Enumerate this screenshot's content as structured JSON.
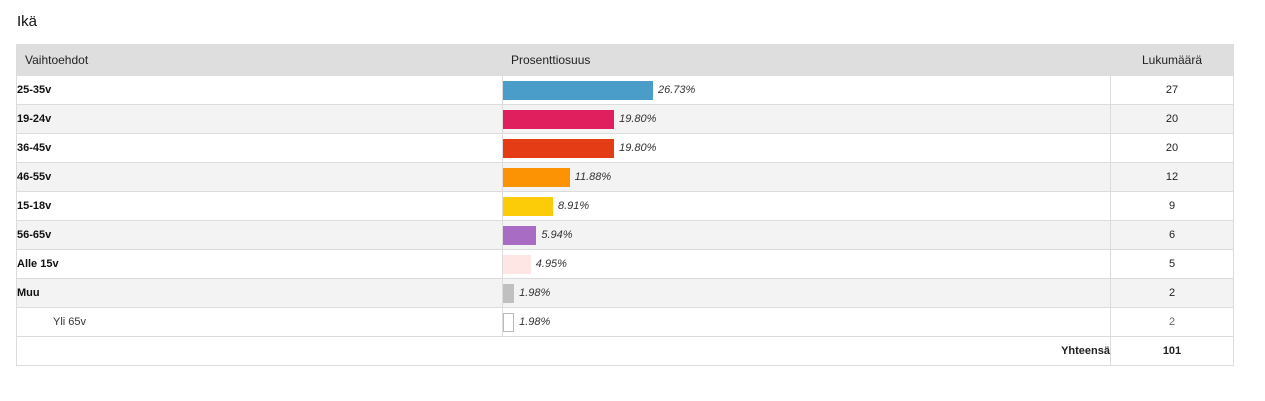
{
  "question_title": "Ikä",
  "headers": {
    "options": "Vaihtoehdot",
    "percentage": "Prosenttiosuus",
    "count": "Lukumäärä"
  },
  "rows": [
    {
      "label": "25-35v",
      "percent": 26.73,
      "percent_text": "26.73%",
      "count": "27",
      "color": "#4a9cc9"
    },
    {
      "label": "19-24v",
      "percent": 19.8,
      "percent_text": "19.80%",
      "count": "20",
      "color": "#e01f5f"
    },
    {
      "label": "36-45v",
      "percent": 19.8,
      "percent_text": "19.80%",
      "count": "20",
      "color": "#e43c14"
    },
    {
      "label": "46-55v",
      "percent": 11.88,
      "percent_text": "11.88%",
      "count": "12",
      "color": "#fb9304"
    },
    {
      "label": "15-18v",
      "percent": 8.91,
      "percent_text": "8.91%",
      "count": "9",
      "color": "#fccc08"
    },
    {
      "label": "56-65v",
      "percent": 5.94,
      "percent_text": "5.94%",
      "count": "6",
      "color": "#a86cc4"
    },
    {
      "label": "Alle 15v",
      "percent": 4.95,
      "percent_text": "4.95%",
      "count": "5",
      "color": "#fde6e4"
    },
    {
      "label": "Muu",
      "percent": 1.98,
      "percent_text": "1.98%",
      "count": "2",
      "color": "#c0c0c0"
    },
    {
      "label": "Yli 65v",
      "percent": 1.98,
      "percent_text": "1.98%",
      "count": "2",
      "color": "#ffffff",
      "sub": true
    }
  ],
  "total": {
    "label": "Yhteensä",
    "count": "101"
  }
}
